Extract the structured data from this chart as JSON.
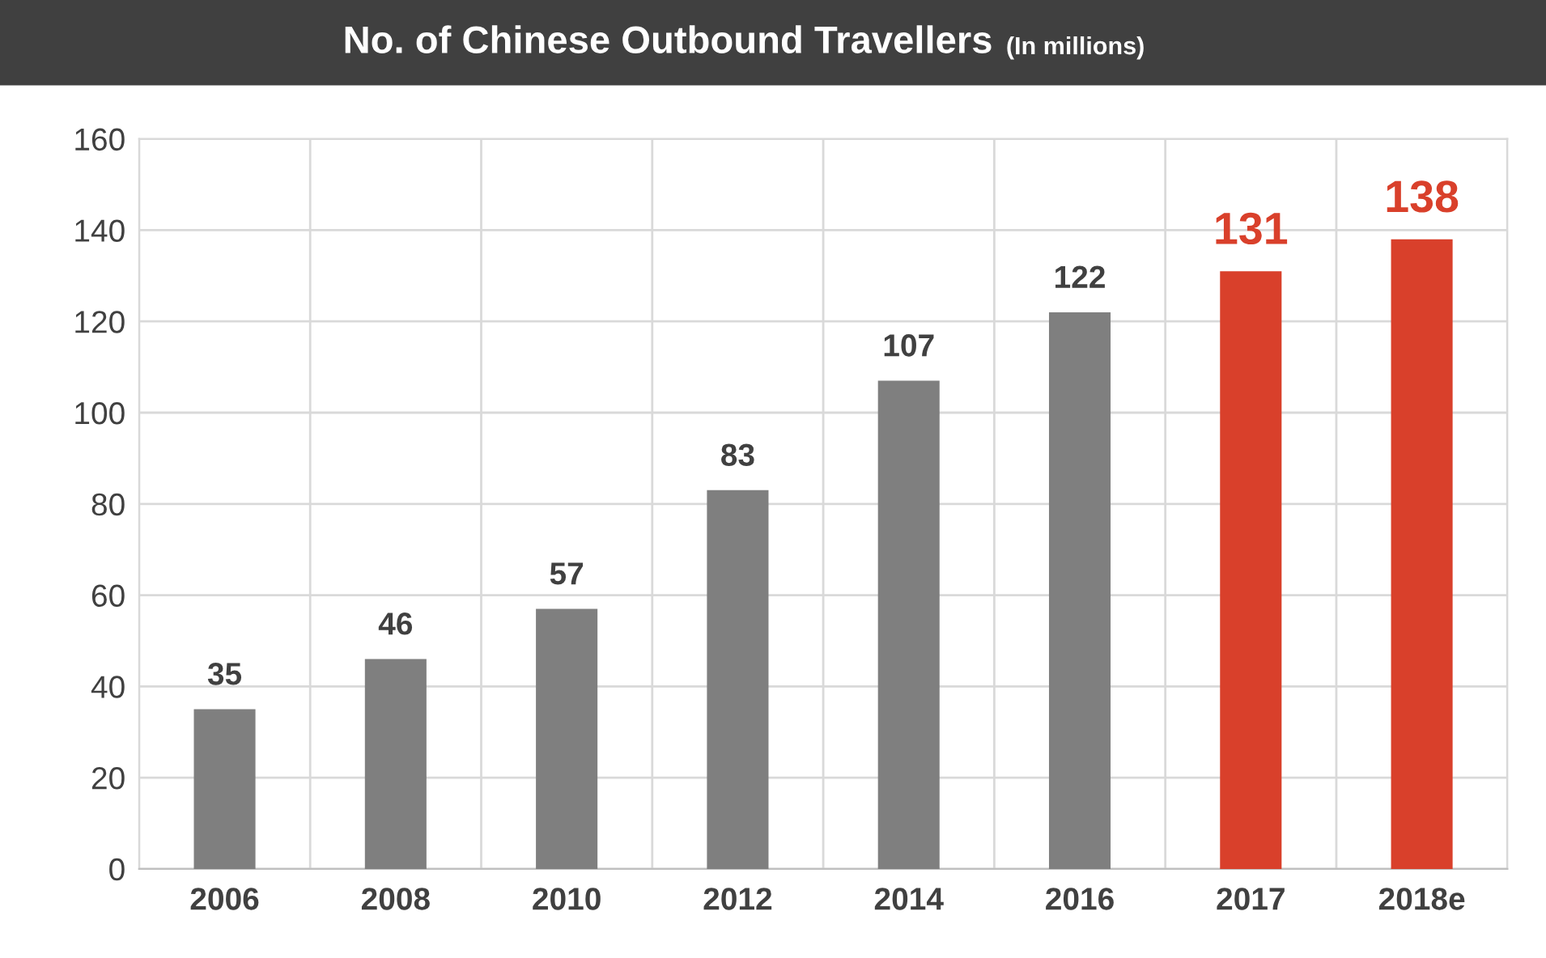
{
  "chart_data": {
    "type": "bar",
    "title": "No. of Chinese Outbound Travellers",
    "subtitle": "(In millions)",
    "categories": [
      "2006",
      "2008",
      "2010",
      "2012",
      "2014",
      "2016",
      "2017",
      "2018e"
    ],
    "values": [
      35,
      46,
      57,
      83,
      107,
      122,
      131,
      138
    ],
    "colors": [
      "#7f7f7f",
      "#7f7f7f",
      "#7f7f7f",
      "#7f7f7f",
      "#7f7f7f",
      "#7f7f7f",
      "#d9402b",
      "#d9402b"
    ],
    "ylim": [
      0,
      160
    ],
    "yticks": [
      0,
      20,
      40,
      60,
      80,
      100,
      120,
      140,
      160
    ],
    "grid": true,
    "data_labels": true
  }
}
